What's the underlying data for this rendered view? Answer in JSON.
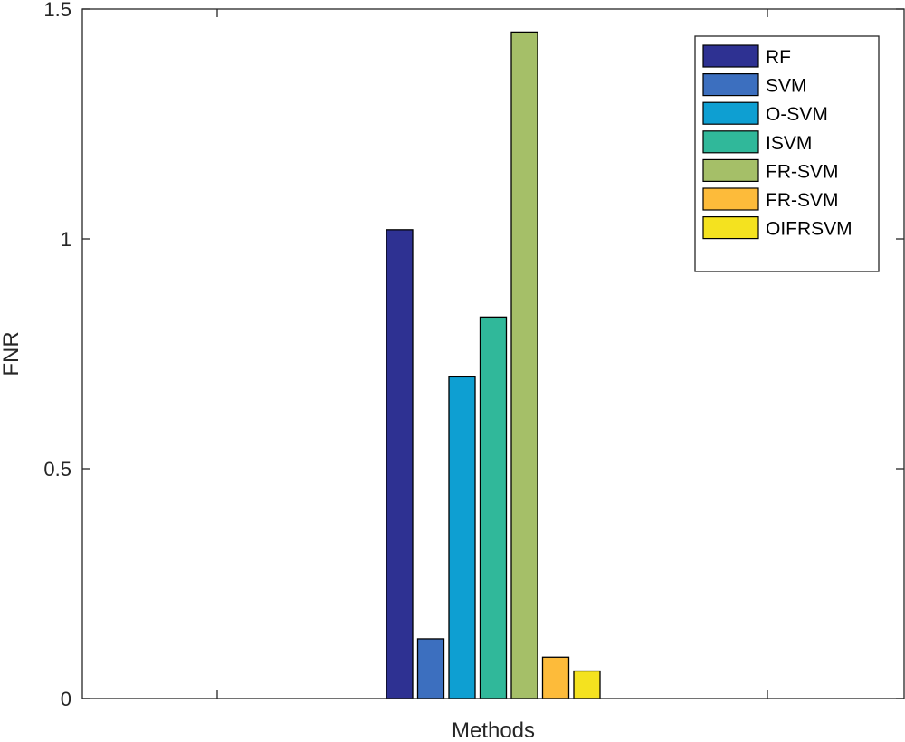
{
  "chart_data": {
    "type": "bar",
    "categories": [
      ""
    ],
    "xlabel": "Methods",
    "ylabel": "FNR",
    "ylim": [
      0,
      1.5
    ],
    "yticks": [
      0,
      0.5,
      1,
      1.5
    ],
    "ytick_labels": [
      "0",
      "0.5",
      "1",
      "1.5"
    ],
    "grid": false,
    "legend_position": "top-right",
    "series": [
      {
        "name": "RF",
        "values": [
          1.02
        ],
        "color": "#2e3192"
      },
      {
        "name": "SVM",
        "values": [
          0.13
        ],
        "color": "#3c6fbf"
      },
      {
        "name": "O-SVM",
        "values": [
          0.7
        ],
        "color": "#0e9fd2"
      },
      {
        "name": "ISVM",
        "values": [
          0.83
        ],
        "color": "#30b89a"
      },
      {
        "name": "FR-SVM",
        "values": [
          1.45
        ],
        "color": "#a5bf68"
      },
      {
        "name": "FR-SVM",
        "values": [
          0.09
        ],
        "color": "#fdbb3a"
      },
      {
        "name": "OIFRSVM",
        "values": [
          0.06
        ],
        "color": "#f4e21f"
      }
    ]
  }
}
